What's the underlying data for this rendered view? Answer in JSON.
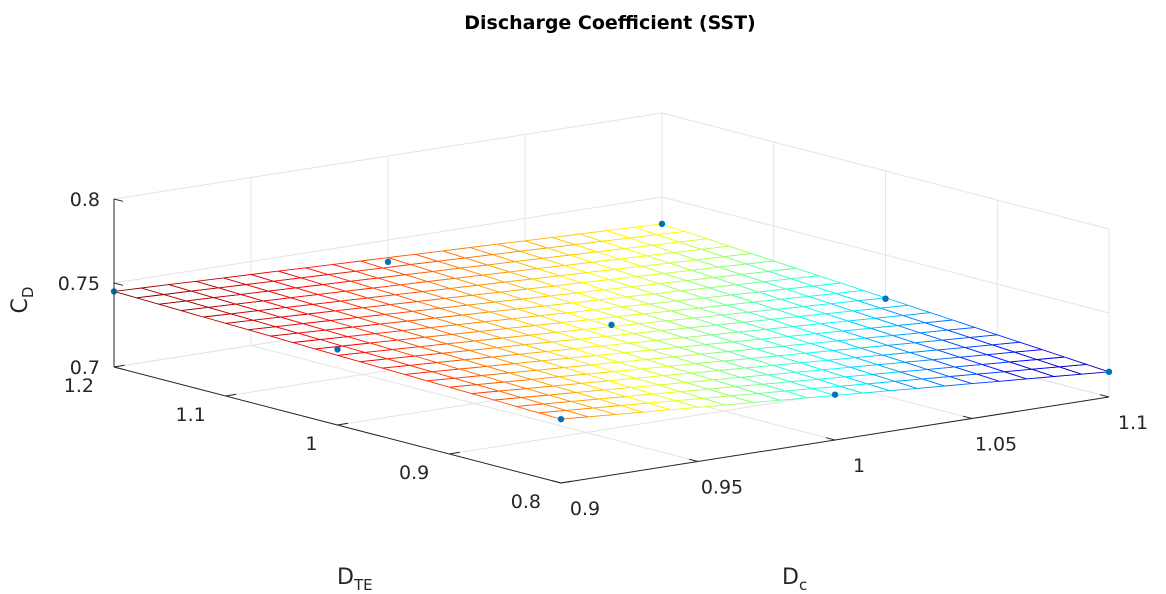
{
  "chart_data": {
    "type": "surface",
    "title": "Discharge Coefficient (SST)",
    "xlabel": "D",
    "xlabel_sub": "c",
    "ylabel": "D",
    "ylabel_sub": "TE",
    "zlabel": "C",
    "zlabel_sub": "D",
    "x_ticks": [
      "0.9",
      "0.95",
      "1",
      "1.05",
      "1.1"
    ],
    "y_ticks": [
      "0.8",
      "0.9",
      "1",
      "1.1",
      "1.2"
    ],
    "z_ticks": [
      "0.7",
      "0.75",
      "0.8"
    ],
    "xlim": [
      0.9,
      1.1
    ],
    "ylim": [
      0.8,
      1.2
    ],
    "zlim": [
      0.7,
      0.8
    ],
    "grid": true,
    "colormap": "jet",
    "marker_color": "#0072BD",
    "mesh_size": 20,
    "surface_corners": {
      "Dc_0.9_DTE_0.8": 0.738,
      "Dc_0.9_DTE_1.2": 0.745,
      "Dc_1.1_DTE_0.8": 0.715,
      "Dc_1.1_DTE_1.2": 0.734
    },
    "points": [
      {
        "x": 0.9,
        "y": 0.8,
        "z": 0.738
      },
      {
        "x": 0.9,
        "y": 1.0,
        "z": 0.745
      },
      {
        "x": 0.9,
        "y": 1.2,
        "z": 0.745
      },
      {
        "x": 1.0,
        "y": 0.8,
        "z": 0.727
      },
      {
        "x": 1.0,
        "y": 1.0,
        "z": 0.734
      },
      {
        "x": 1.0,
        "y": 1.2,
        "z": 0.737
      },
      {
        "x": 1.1,
        "y": 0.8,
        "z": 0.715
      },
      {
        "x": 1.1,
        "y": 1.0,
        "z": 0.724
      },
      {
        "x": 1.1,
        "y": 1.2,
        "z": 0.734
      }
    ]
  }
}
